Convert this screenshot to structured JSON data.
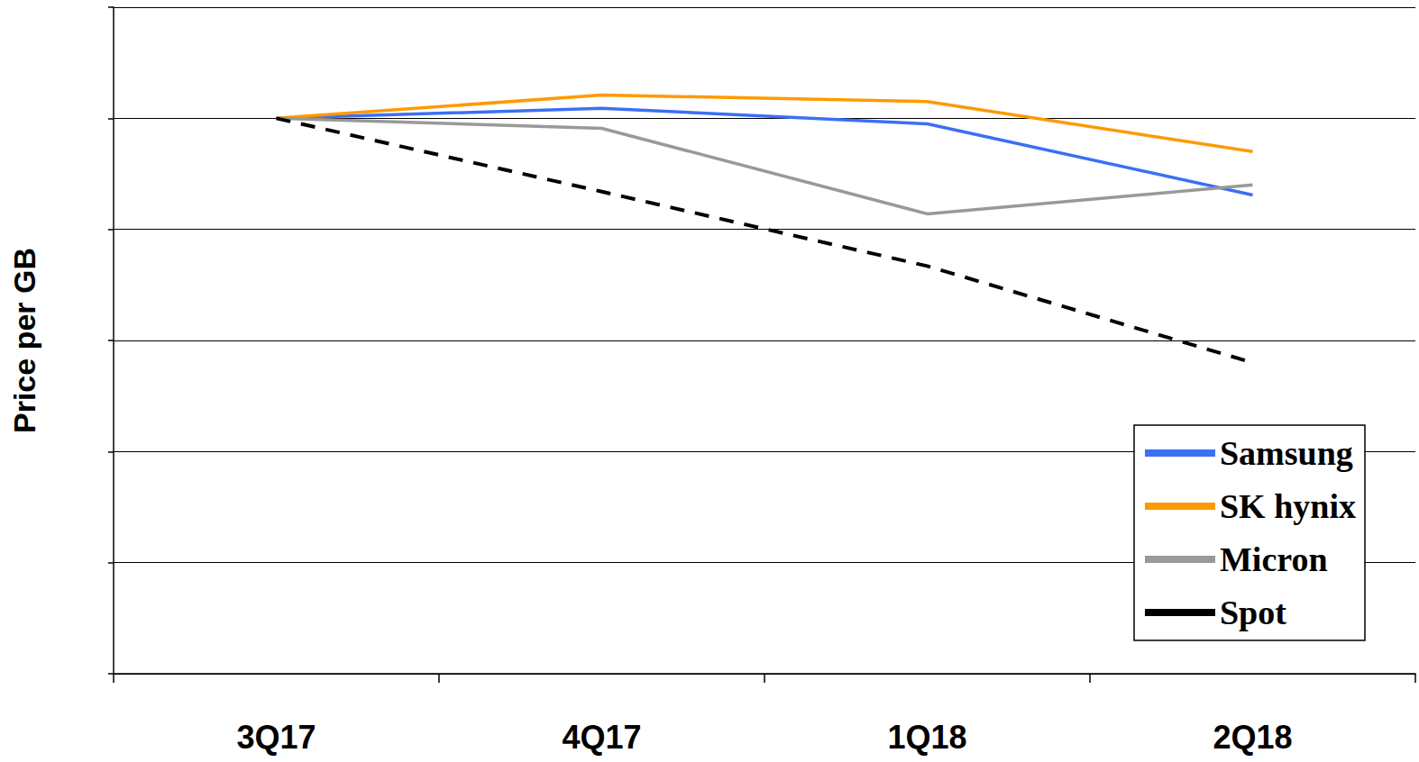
{
  "chart_data": {
    "type": "line",
    "y_label": "Price per GB",
    "categories": [
      "3Q17",
      "4Q17",
      "1Q18",
      "2Q18"
    ],
    "series": [
      {
        "name": "Samsung",
        "color": "#3b6ff5",
        "line_style": "solid",
        "values": [
          5.0,
          5.09,
          4.95,
          4.31
        ]
      },
      {
        "name": "SK hynix",
        "color": "#ff9900",
        "line_style": "solid",
        "values": [
          5.0,
          5.21,
          5.15,
          4.7
        ]
      },
      {
        "name": "Micron",
        "color": "#999999",
        "line_style": "solid",
        "values": [
          5.0,
          4.91,
          4.14,
          4.4
        ]
      },
      {
        "name": "Spot",
        "color": "#000000",
        "line_style": "dashed",
        "values": [
          5.0,
          4.34,
          3.67,
          2.8
        ]
      }
    ],
    "ylim": [
      0,
      6
    ],
    "yticks": [
      0,
      1,
      2,
      3,
      4,
      5,
      6
    ],
    "grid": true,
    "tick_labels": "x",
    "legend": "lower right"
  }
}
